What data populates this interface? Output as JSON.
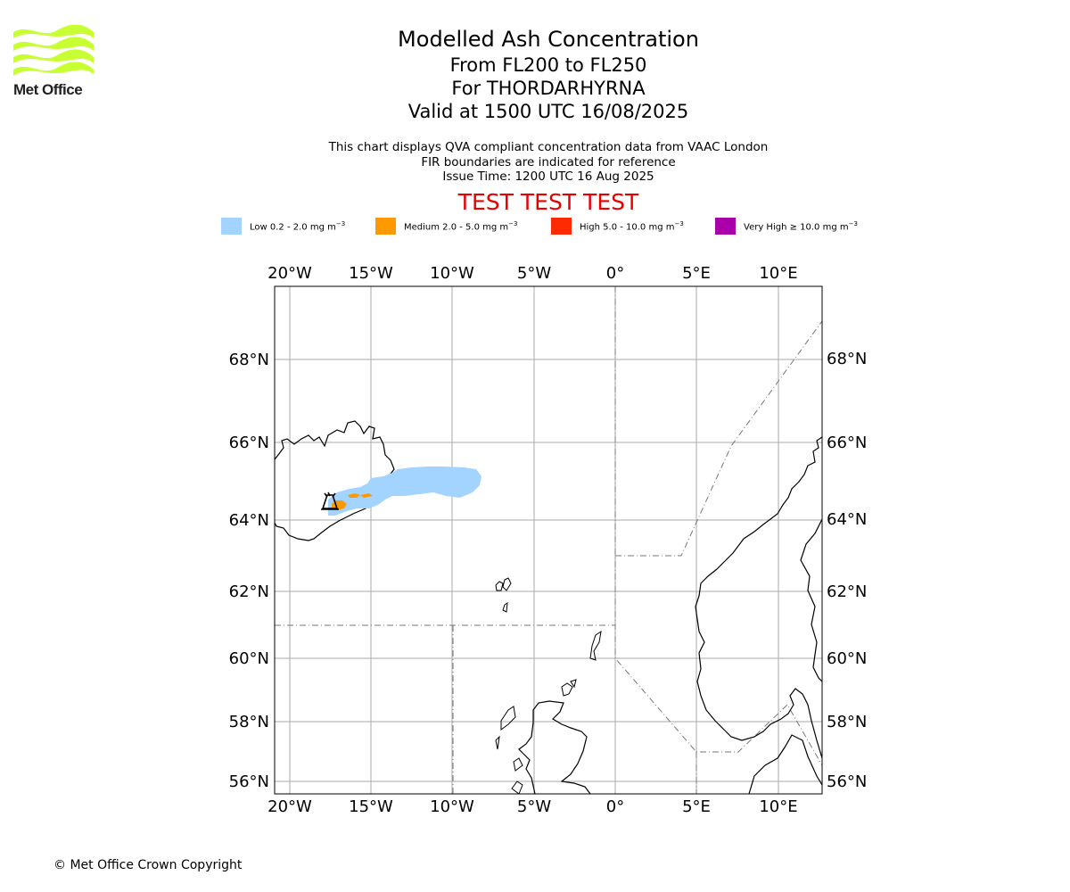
{
  "header": {
    "logo_text": "Met Office",
    "title": "Modelled Ash Concentration",
    "levels": "From FL200 to FL250",
    "volcano": "For THORDARHYRNA",
    "valid": "Valid at 1500 UTC 16/08/2025",
    "desc_line1": "This chart displays QVA compliant concentration data from VAAC London",
    "desc_line2": "FIR boundaries are indicated for reference",
    "issue_time": "Issue Time: 1200 UTC 16 Aug 2025",
    "test_banner": "TEST TEST TEST"
  },
  "legend": [
    {
      "label": "Low 0.2 - 2.0 mg m",
      "sup": "−3",
      "color": "#a3d3ff"
    },
    {
      "label": "Medium 2.0 - 5.0 mg m",
      "sup": "−3",
      "color": "#ff9900"
    },
    {
      "label": "High 5.0 - 10.0 mg m",
      "sup": "−3",
      "color": "#ff2a00"
    },
    {
      "label": "Very High  ≥  10.0 mg m",
      "sup": "−3",
      "color": "#aa00aa"
    }
  ],
  "map": {
    "lon_ticks": [
      "20°W",
      "15°W",
      "10°W",
      "5°W",
      "0°",
      "5°E",
      "10°E"
    ],
    "lat_ticks": [
      "68°N",
      "66°N",
      "64°N",
      "62°N",
      "60°N",
      "58°N",
      "56°N"
    ],
    "extent": {
      "lon_min": -21,
      "lon_max": 12.6,
      "lat_min": 55.6,
      "lat_max": 69.9
    },
    "volcano_icon": "volcano-icon",
    "gridline_color": "#aaaaaa",
    "fir_style": "dash-dot"
  },
  "footer": {
    "copyright": "© Met Office Crown Copyright"
  }
}
